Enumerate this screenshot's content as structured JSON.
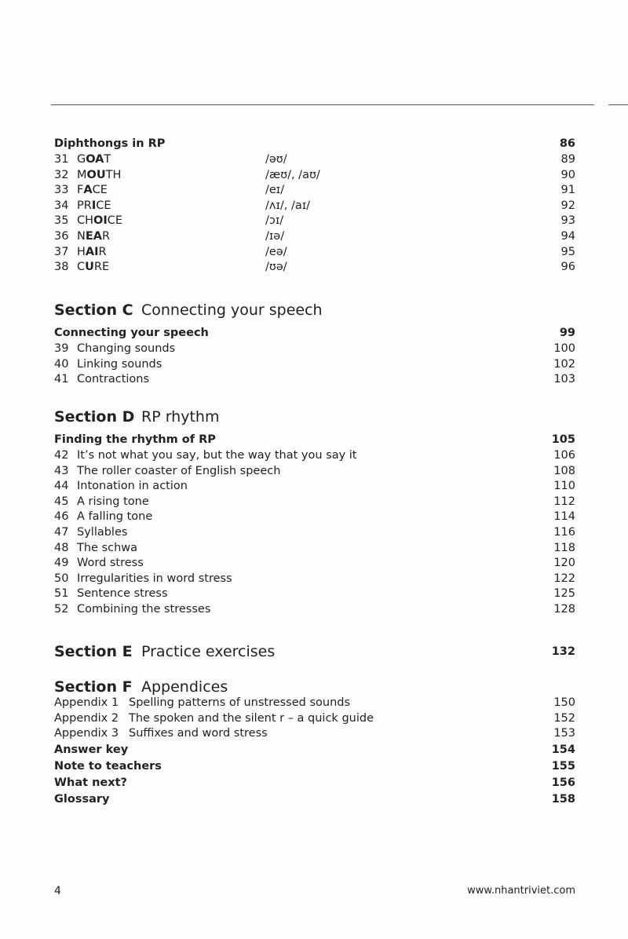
{
  "diphthongs": {
    "heading": "Diphthongs in RP",
    "page": "86",
    "items": [
      {
        "num": "31",
        "pre": "G",
        "bold": "OA",
        "post": "T",
        "ipa": "/əʊ/",
        "page": "89"
      },
      {
        "num": "32",
        "pre": "M",
        "bold": "OU",
        "post": "TH",
        "ipa": "/æʊ/, /aʊ/",
        "page": "90"
      },
      {
        "num": "33",
        "pre": "F",
        "bold": "A",
        "post": "CE",
        "ipa": "/eɪ/",
        "page": "91"
      },
      {
        "num": "34",
        "pre": "PR",
        "bold": "I",
        "post": "CE",
        "ipa": "/ʌɪ/, /aɪ/",
        "page": "92"
      },
      {
        "num": "35",
        "pre": "CH",
        "bold": "OI",
        "post": "CE",
        "ipa": "/ɔɪ/",
        "page": "93"
      },
      {
        "num": "36",
        "pre": "N",
        "bold": "EA",
        "post": "R",
        "ipa": "/ɪə/",
        "page": "94"
      },
      {
        "num": "37",
        "pre": "H",
        "bold": "AI",
        "post": "R",
        "ipa": "/eə/",
        "page": "95"
      },
      {
        "num": "38",
        "pre": "C",
        "bold": "U",
        "post": "RE",
        "ipa": "/ʊə/",
        "page": "96"
      }
    ]
  },
  "sectionC": {
    "label": "Section C",
    "title": "Connecting your speech",
    "sub": "Connecting your speech",
    "sub_page": "99",
    "items": [
      {
        "num": "39",
        "title": "Changing sounds",
        "page": "100"
      },
      {
        "num": "40",
        "title": "Linking sounds",
        "page": "102"
      },
      {
        "num": "41",
        "title": "Contractions",
        "page": "103"
      }
    ]
  },
  "sectionD": {
    "label": "Section D",
    "title": "RP rhythm",
    "sub": "Finding the rhythm of RP",
    "sub_page": "105",
    "items": [
      {
        "num": "42",
        "title": "It’s not what you say, but the way that you say it",
        "page": "106"
      },
      {
        "num": "43",
        "title": "The roller coaster of English speech",
        "page": "108"
      },
      {
        "num": "44",
        "title": "Intonation in action",
        "page": "110"
      },
      {
        "num": "45",
        "title": "A rising tone",
        "page": "112"
      },
      {
        "num": "46",
        "title": "A falling tone",
        "page": "114"
      },
      {
        "num": "47",
        "title": "Syllables",
        "page": "116"
      },
      {
        "num": "48",
        "title": "The schwa",
        "page": "118"
      },
      {
        "num": "49",
        "title": "Word stress",
        "page": "120"
      },
      {
        "num": "50",
        "title": "Irregularities in word stress",
        "page": "122"
      },
      {
        "num": "51",
        "title": "Sentence stress",
        "page": "125"
      },
      {
        "num": "52",
        "title": "Combining the stresses",
        "page": "128"
      }
    ]
  },
  "sectionE": {
    "label": "Section E",
    "title": "Practice exercises",
    "page": "132"
  },
  "sectionF": {
    "label": "Section F",
    "title": "Appendices",
    "appendices": [
      {
        "num": "Appendix 1",
        "title": "Spelling patterns of unstressed sounds",
        "page": "150"
      },
      {
        "num": "Appendix 2",
        "title": "The spoken and the silent r – a quick guide",
        "page": "152"
      },
      {
        "num": "Appendix 3",
        "title": "Suffixes and word stress",
        "page": "153"
      }
    ],
    "extras": [
      {
        "title": "Answer key",
        "page": "154"
      },
      {
        "title": "Note to teachers",
        "page": "155"
      },
      {
        "title": "What next?",
        "page": "156"
      },
      {
        "title": "Glossary",
        "page": "158"
      }
    ]
  },
  "footer": {
    "page_number": "4",
    "url": "www.nhantriviet.com"
  }
}
